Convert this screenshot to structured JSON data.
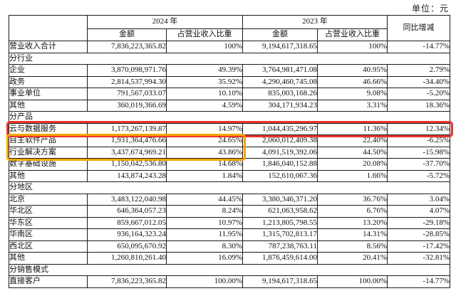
{
  "unit_label": "单位：元",
  "colors": {
    "highlight_red": "#e8352b",
    "highlight_yellow": "#f7a600",
    "header_bg": "#d4d4d4"
  },
  "header": {
    "year_2024": "2024 年",
    "year_2023": "2023 年",
    "amount": "金额",
    "share": "占营业收入比重",
    "yoy": "同比增减"
  },
  "total_row": {
    "label": "营业收入合计",
    "a2024": "7,836,223,365.82",
    "s2024": "100%",
    "a2023": "9,194,617,318.65",
    "s2023": "100%",
    "yoy": "-14.77%"
  },
  "sections": [
    {
      "title": "分行业",
      "rows": [
        {
          "label": "企业",
          "a2024": "3,870,098,971.76",
          "s2024": "49.39%",
          "a2023": "3,764,981,471.08",
          "s2023": "40.95%",
          "yoy": "2.79%"
        },
        {
          "label": "政务",
          "a2024": "2,814,537,994.30",
          "s2024": "35.92%",
          "a2023": "4,290,460,745.08",
          "s2023": "46.66%",
          "yoy": "-34.40%"
        },
        {
          "label": "事业单位",
          "a2024": "791,567,033.07",
          "s2024": "10.10%",
          "a2023": "835,003,168.26",
          "s2023": "9.08%",
          "yoy": "-5.20%"
        },
        {
          "label": "其他",
          "a2024": "360,019,366.69",
          "s2024": "4.59%",
          "a2023": "304,171,934.23",
          "s2023": "3.31%",
          "yoy": "18.36%"
        }
      ]
    },
    {
      "title": "分产品",
      "rows": [
        {
          "label": "云与数据服务",
          "a2024": "1,173,267,139.87",
          "s2024": "14.97%",
          "a2023": "1,044,435,296.97",
          "s2023": "11.36%",
          "yoy": "12.34%"
        },
        {
          "label": "自主软件产品",
          "a2024": "1,931,364,476.66",
          "s2024": "24.65%",
          "a2023": "2,060,012,409.38",
          "s2023": "22.40%",
          "yoy": "-6.25%"
        },
        {
          "label": "行业解决方案",
          "a2024": "3,437,674,969.21",
          "s2024": "43.86%",
          "a2023": "4,091,519,392.06",
          "s2023": "44.50%",
          "yoy": "-15.98%"
        },
        {
          "label": "数字基础设施",
          "a2024": "1,150,042,536.80",
          "s2024": "14.68%",
          "a2023": "1,846,040,152.88",
          "s2023": "20.08%",
          "yoy": "-37.70%"
        },
        {
          "label": "其他",
          "a2024": "143,874,243.28",
          "s2024": "1.84%",
          "a2023": "152,610,067.36",
          "s2023": "1.66%",
          "yoy": "-5.72%"
        }
      ]
    },
    {
      "title": "分地区",
      "rows": [
        {
          "label": "北京",
          "a2024": "3,483,122,040.98",
          "s2024": "44.45%",
          "a2023": "3,380,346,371.20",
          "s2023": "36.76%",
          "yoy": "3.04%"
        },
        {
          "label": "华北区",
          "a2024": "646,364,057.23",
          "s2024": "8.24%",
          "a2023": "621,063,958.62",
          "s2023": "6.76%",
          "yoy": "4.07%"
        },
        {
          "label": "华东区",
          "a2024": "859,667,012.05",
          "s2024": "10.97%",
          "a2023": "1,213,805,798.55",
          "s2023": "13.20%",
          "yoy": "-29.18%"
        },
        {
          "label": "华南区",
          "a2024": "936,164,323.24",
          "s2024": "11.95%",
          "a2023": "1,315,702,813.17",
          "s2023": "14.31%",
          "yoy": "-28.85%"
        },
        {
          "label": "西北区",
          "a2024": "650,095,670.92",
          "s2024": "8.30%",
          "a2023": "787,238,763.11",
          "s2023": "8.56%",
          "yoy": "-17.42%"
        },
        {
          "label": "其他",
          "a2024": "1,260,810,261.40",
          "s2024": "16.09%",
          "a2023": "1,876,459,614.00",
          "s2023": "20.41%",
          "yoy": "-32.81%"
        }
      ]
    },
    {
      "title": "分销售模式",
      "rows": [
        {
          "label": "直接客户",
          "a2024": "7,836,223,365.82",
          "s2024": "100.00%",
          "a2023": "9,194,617,318.65",
          "s2023": "100.00%",
          "yoy": "-14.77%"
        }
      ]
    }
  ]
}
